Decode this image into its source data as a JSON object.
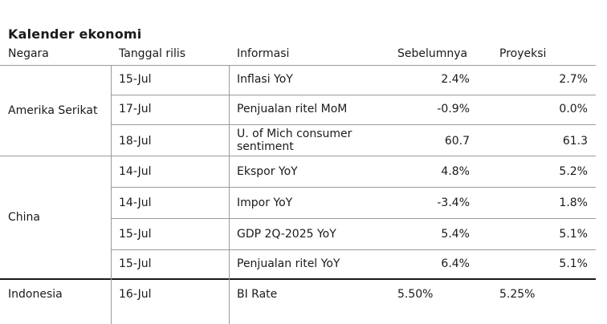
{
  "title": "Kalender ekonomi",
  "headers": {
    "country": "Negara",
    "date": "Tanggal rilis",
    "info": "Informasi",
    "previous": "Sebelumnya",
    "projection": "Proyeksi"
  },
  "groups": [
    {
      "country": "Amerika Serikat",
      "rows": [
        {
          "date": "15-Jul",
          "info": "Inflasi YoY",
          "previous": "2.4%",
          "projection": "2.7%"
        },
        {
          "date": "17-Jul",
          "info": "Penjualan ritel MoM",
          "previous": "-0.9%",
          "projection": "0.0%"
        },
        {
          "date": "18-Jul",
          "info_line1": "U. of Mich consumer",
          "info_line2": "sentiment",
          "previous": "60.7",
          "projection": "61.3"
        }
      ]
    },
    {
      "country": "China",
      "rows": [
        {
          "date": "14-Jul",
          "info": "Ekspor YoY",
          "previous": "4.8%",
          "projection": "5.2%"
        },
        {
          "date": "14-Jul",
          "info": "Impor YoY",
          "previous": "-3.4%",
          "projection": "1.8%"
        },
        {
          "date": "15-Jul",
          "info": "GDP 2Q-2025 YoY",
          "previous": "5.4%",
          "projection": "5.1%"
        },
        {
          "date": "15-Jul",
          "info": "Penjualan ritel YoY",
          "previous": "6.4%",
          "projection": "5.1%"
        }
      ]
    },
    {
      "country": "Indonesia",
      "rows": [
        {
          "date": "16-Jul",
          "info": "BI Rate",
          "previous": "5.50%",
          "projection": "5.25%"
        }
      ]
    }
  ]
}
